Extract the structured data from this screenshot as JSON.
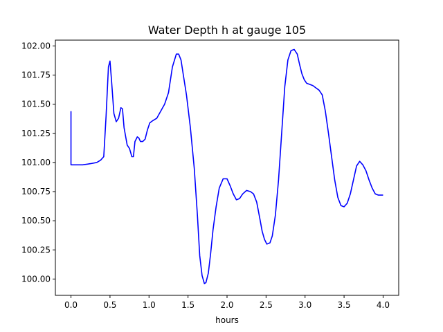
{
  "chart_data": {
    "type": "line",
    "title": "Water Depth h at gauge 105",
    "xlabel": "hours",
    "ylabel": "",
    "xlim": [
      -0.2,
      4.2
    ],
    "ylim": [
      99.86,
      102.05
    ],
    "x_ticks": [
      0.0,
      0.5,
      1.0,
      1.5,
      2.0,
      2.5,
      3.0,
      3.5,
      4.0
    ],
    "x_tick_labels": [
      "0.0",
      "0.5",
      "1.0",
      "1.5",
      "2.0",
      "2.5",
      "3.0",
      "3.5",
      "4.0"
    ],
    "y_ticks": [
      100.0,
      100.25,
      100.5,
      100.75,
      101.0,
      101.25,
      101.5,
      101.75,
      102.0
    ],
    "y_tick_labels": [
      "100.00",
      "100.25",
      "100.50",
      "100.75",
      "101.00",
      "101.25",
      "101.50",
      "101.75",
      "102.00"
    ],
    "grid": false,
    "series": [
      {
        "color": "#0000ff",
        "x": [
          0.0,
          0.0,
          0.05,
          0.15,
          0.25,
          0.33,
          0.38,
          0.42,
          0.45,
          0.48,
          0.5,
          0.52,
          0.55,
          0.58,
          0.61,
          0.64,
          0.66,
          0.68,
          0.72,
          0.75,
          0.78,
          0.8,
          0.82,
          0.85,
          0.87,
          0.89,
          0.92,
          0.95,
          0.98,
          1.01,
          1.05,
          1.1,
          1.15,
          1.2,
          1.25,
          1.3,
          1.35,
          1.38,
          1.41,
          1.44,
          1.48,
          1.53,
          1.58,
          1.62,
          1.65,
          1.68,
          1.71,
          1.73,
          1.76,
          1.79,
          1.82,
          1.86,
          1.9,
          1.95,
          2.0,
          2.04,
          2.08,
          2.12,
          2.16,
          2.2,
          2.25,
          2.3,
          2.34,
          2.38,
          2.42,
          2.45,
          2.48,
          2.51,
          2.55,
          2.58,
          2.62,
          2.66,
          2.7,
          2.74,
          2.78,
          2.82,
          2.86,
          2.9,
          2.93,
          2.96,
          2.99,
          3.02,
          3.06,
          3.1,
          3.14,
          3.18,
          3.22,
          3.26,
          3.3,
          3.34,
          3.38,
          3.42,
          3.46,
          3.5,
          3.54,
          3.58,
          3.62,
          3.66,
          3.7,
          3.74,
          3.78,
          3.82,
          3.86,
          3.9,
          3.94,
          3.98,
          4.0
        ],
        "values": [
          101.44,
          100.98,
          100.98,
          100.98,
          100.99,
          101.0,
          101.02,
          101.05,
          101.4,
          101.82,
          101.87,
          101.7,
          101.42,
          101.35,
          101.38,
          101.47,
          101.46,
          101.3,
          101.15,
          101.12,
          101.05,
          101.05,
          101.18,
          101.22,
          101.21,
          101.18,
          101.18,
          101.2,
          101.28,
          101.34,
          101.36,
          101.38,
          101.44,
          101.5,
          101.6,
          101.82,
          101.93,
          101.93,
          101.88,
          101.75,
          101.58,
          101.3,
          100.95,
          100.55,
          100.2,
          100.03,
          99.96,
          99.97,
          100.05,
          100.22,
          100.42,
          100.62,
          100.78,
          100.86,
          100.86,
          100.8,
          100.73,
          100.68,
          100.69,
          100.73,
          100.76,
          100.75,
          100.73,
          100.66,
          100.52,
          100.41,
          100.34,
          100.3,
          100.31,
          100.37,
          100.55,
          100.85,
          101.25,
          101.65,
          101.88,
          101.96,
          101.97,
          101.93,
          101.84,
          101.76,
          101.71,
          101.68,
          101.67,
          101.66,
          101.64,
          101.62,
          101.58,
          101.44,
          101.25,
          101.05,
          100.85,
          100.7,
          100.63,
          100.62,
          100.65,
          100.73,
          100.85,
          100.97,
          101.01,
          100.98,
          100.93,
          100.85,
          100.78,
          100.73,
          100.72,
          100.72,
          100.72
        ]
      }
    ]
  }
}
